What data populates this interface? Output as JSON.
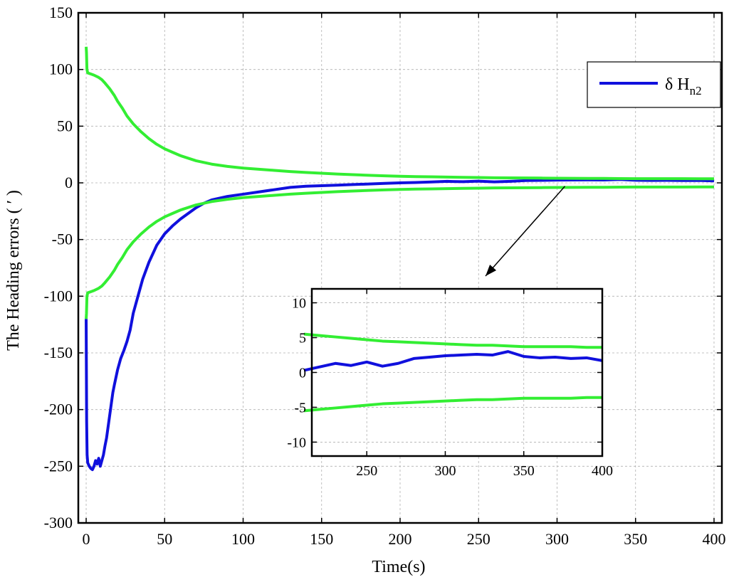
{
  "chart_data": {
    "type": "line",
    "xlabel": "Time(s)",
    "ylabel": "The Heading errors ( ′ )",
    "xlim": [
      -5,
      405
    ],
    "ylim": [
      -300,
      150
    ],
    "xticks": [
      0,
      50,
      100,
      150,
      200,
      250,
      300,
      350,
      400
    ],
    "yticks": [
      -300,
      -250,
      -200,
      -150,
      -100,
      -50,
      0,
      50,
      100,
      150
    ],
    "grid": true,
    "legend": {
      "position": "top-right",
      "label_main": "δ H",
      "label_sub": "n2"
    },
    "colors": {
      "error": "#1010dd",
      "bound": "#33ee33",
      "axis": "#000000",
      "grid": "#b0b0b0"
    },
    "series": [
      {
        "name": "δ Hn2",
        "role": "error",
        "x": [
          0,
          0.3,
          0.6,
          1,
          2,
          3,
          4,
          5,
          6,
          7,
          8,
          9,
          10,
          11,
          12,
          13,
          14,
          15,
          16,
          17,
          18,
          20,
          22,
          24,
          26,
          28,
          30,
          33,
          36,
          40,
          45,
          50,
          55,
          60,
          65,
          70,
          75,
          80,
          90,
          100,
          110,
          120,
          130,
          140,
          150,
          160,
          170,
          180,
          190,
          200,
          210,
          220,
          230,
          240,
          250,
          260,
          270,
          280,
          290,
          300,
          310,
          320,
          330,
          340,
          350,
          360,
          370,
          380,
          390,
          400
        ],
        "y": [
          -120,
          -210,
          -240,
          -247,
          -250,
          -252,
          -253,
          -250,
          -245,
          -248,
          -243,
          -250,
          -245,
          -240,
          -232,
          -225,
          -215,
          -205,
          -195,
          -185,
          -178,
          -165,
          -155,
          -148,
          -140,
          -130,
          -115,
          -100,
          -85,
          -70,
          -55,
          -45,
          -38,
          -32,
          -27,
          -22,
          -18,
          -15,
          -12,
          -10,
          -8,
          -6,
          -4,
          -3,
          -2.5,
          -2,
          -1.5,
          -1,
          -0.5,
          0,
          0.3,
          0.8,
          1.3,
          1.0,
          1.5,
          0.9,
          1.3,
          2.0,
          2.2,
          2.4,
          2.5,
          2.6,
          2.5,
          3.0,
          2.3,
          2.1,
          2.2,
          2.0,
          2.1,
          1.7
        ]
      },
      {
        "name": "",
        "role": "upper-bound",
        "x": [
          0,
          0.2,
          0.5,
          1,
          3,
          5,
          8,
          10,
          12,
          15,
          18,
          20,
          23,
          26,
          30,
          35,
          40,
          45,
          50,
          55,
          60,
          70,
          80,
          90,
          100,
          110,
          120,
          130,
          140,
          150,
          160,
          170,
          180,
          190,
          200,
          210,
          220,
          230,
          240,
          250,
          260,
          270,
          280,
          290,
          300,
          310,
          320,
          330,
          340,
          350,
          360,
          370,
          380,
          390,
          400
        ],
        "y": [
          120,
          115,
          100,
          97,
          96,
          95,
          93,
          91,
          88,
          83,
          77,
          72,
          66,
          59,
          52,
          45,
          39,
          34,
          30,
          27,
          24,
          19.5,
          16.5,
          14.5,
          13,
          12,
          11,
          10,
          9.2,
          8.5,
          7.8,
          7.2,
          6.7,
          6.2,
          5.8,
          5.5,
          5.3,
          5.1,
          4.9,
          4.7,
          4.5,
          4.4,
          4.3,
          4.2,
          4.1,
          4.0,
          3.9,
          3.9,
          3.8,
          3.7,
          3.7,
          3.7,
          3.7,
          3.6,
          3.6
        ]
      },
      {
        "name": "",
        "role": "lower-bound",
        "x": [
          0,
          0.2,
          0.5,
          1,
          3,
          5,
          8,
          10,
          12,
          15,
          18,
          20,
          23,
          26,
          30,
          35,
          40,
          45,
          50,
          55,
          60,
          70,
          80,
          90,
          100,
          110,
          120,
          130,
          140,
          150,
          160,
          170,
          180,
          190,
          200,
          210,
          220,
          230,
          240,
          250,
          260,
          270,
          280,
          290,
          300,
          310,
          320,
          330,
          340,
          350,
          360,
          370,
          380,
          390,
          400
        ],
        "y": [
          -120,
          -115,
          -100,
          -97,
          -96,
          -95,
          -93,
          -91,
          -88,
          -83,
          -77,
          -72,
          -66,
          -59,
          -52,
          -45,
          -39,
          -34,
          -30,
          -27,
          -24,
          -19.5,
          -16.5,
          -14.5,
          -13,
          -12,
          -11,
          -10,
          -9.2,
          -8.5,
          -7.8,
          -7.2,
          -6.7,
          -6.2,
          -5.8,
          -5.5,
          -5.3,
          -5.1,
          -4.9,
          -4.7,
          -4.5,
          -4.4,
          -4.3,
          -4.2,
          -4.1,
          -4.0,
          -3.9,
          -3.9,
          -3.8,
          -3.7,
          -3.7,
          -3.7,
          -3.7,
          -3.6,
          -3.6
        ]
      }
    ],
    "inset": {
      "xlim": [
        215,
        400
      ],
      "ylim": [
        -12,
        12
      ],
      "xticks": [
        250,
        300,
        350,
        400
      ],
      "yticks": [
        -10,
        -5,
        0,
        5,
        10
      ],
      "grid": true,
      "pointer_from_data": [
        305,
        -3
      ]
    }
  }
}
